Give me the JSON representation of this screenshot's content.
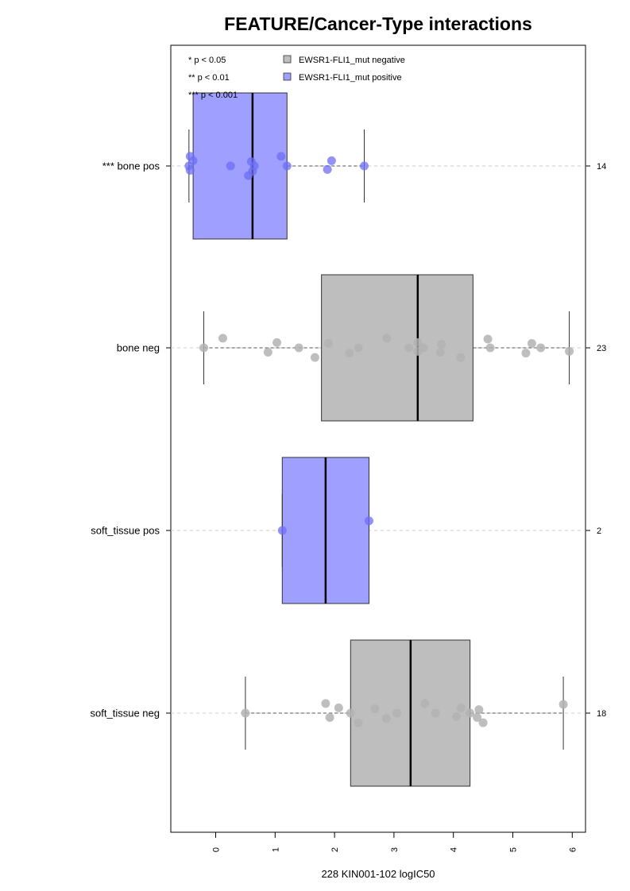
{
  "chart_data": {
    "type": "boxplot",
    "orientation": "horizontal",
    "title": "FEATURE/Cancer-Type interactions",
    "xlabel": "228 KIN001-102 logIC50",
    "xlim": [
      -0.75,
      6.2
    ],
    "x_ticks": [
      0,
      1,
      2,
      3,
      4,
      5,
      6
    ],
    "x_tick_labels": [
      "0",
      "1",
      "2",
      "3",
      "4",
      "5",
      "6"
    ],
    "significance_legend": [
      "* p < 0.05",
      "** p < 0.01",
      "*** p < 0.001"
    ],
    "legend": [
      {
        "label": "EWSR1-FLI1_mut negative",
        "color": "#bebebe"
      },
      {
        "label": "EWSR1-FLI1_mut positive",
        "color": "#9f9fff"
      }
    ],
    "point_colors": {
      "negative": "#b3b3b3",
      "positive": "#6e6ef5"
    },
    "groups": [
      {
        "label": "*** bone pos",
        "n": "14",
        "status": "positive",
        "whisker_low": -0.45,
        "q1": -0.38,
        "median": 0.62,
        "q3": 1.2,
        "whisker_high": 2.5,
        "points": [
          -0.45,
          -0.43,
          -0.43,
          -0.38,
          0.25,
          0.55,
          0.6,
          0.62,
          0.65,
          1.1,
          1.2,
          1.88,
          1.95,
          2.5
        ]
      },
      {
        "label": "bone neg",
        "n": "23",
        "status": "negative",
        "whisker_low": -0.2,
        "q1": 1.78,
        "median": 3.4,
        "q3": 4.33,
        "whisker_high": 5.95,
        "points": [
          -0.2,
          0.12,
          0.88,
          1.03,
          1.4,
          1.67,
          1.9,
          2.25,
          2.4,
          2.88,
          3.25,
          3.4,
          3.4,
          3.5,
          3.78,
          3.8,
          4.12,
          4.58,
          4.62,
          5.22,
          5.32,
          5.47,
          5.95
        ]
      },
      {
        "label": "soft_tissue pos",
        "n": "2",
        "status": "positive",
        "whisker_low": 1.12,
        "q1": 1.12,
        "median": 1.85,
        "q3": 2.58,
        "whisker_high": 2.58,
        "points": [
          1.12,
          2.58
        ]
      },
      {
        "label": "soft_tissue neg",
        "n": "18",
        "status": "negative",
        "whisker_low": 0.5,
        "q1": 2.27,
        "median": 3.28,
        "q3": 4.28,
        "whisker_high": 5.85,
        "points": [
          0.5,
          1.85,
          1.92,
          2.07,
          2.27,
          2.4,
          2.68,
          2.87,
          3.05,
          3.52,
          3.7,
          4.05,
          4.13,
          4.28,
          4.4,
          4.43,
          4.5,
          5.85
        ]
      }
    ]
  }
}
